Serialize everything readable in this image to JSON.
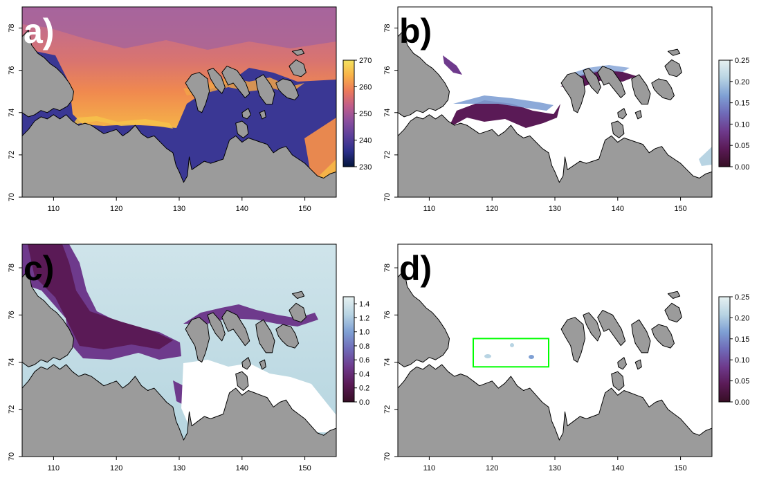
{
  "figure": {
    "panels": [
      {
        "label": "a)",
        "label_color": "#ffffff",
        "colorbar": {
          "ticks": [
            "230",
            "240",
            "250",
            "260",
            "270"
          ],
          "scheme": "thermal"
        }
      },
      {
        "label": "b)",
        "label_color": "#000000",
        "colorbar": {
          "ticks": [
            "0.00",
            "0.05",
            "0.10",
            "0.15",
            "0.20",
            "0.25"
          ],
          "scheme": "dense"
        }
      },
      {
        "label": "c)",
        "label_color": "#000000",
        "colorbar": {
          "ticks": [
            "0.0",
            "0.2",
            "0.4",
            "0.6",
            "0.8",
            "1.0",
            "1.2",
            "1.4"
          ],
          "scheme": "dense"
        }
      },
      {
        "label": "d)",
        "label_color": "#000000",
        "colorbar": {
          "ticks": [
            "0.00",
            "0.05",
            "0.10",
            "0.15",
            "0.20",
            "0.25"
          ],
          "scheme": "dense"
        }
      }
    ],
    "x_ticks": [
      "110",
      "120",
      "130",
      "140",
      "150"
    ],
    "y_ticks": [
      "70",
      "72",
      "74",
      "76",
      "78"
    ]
  },
  "chart_data": [
    {
      "type": "heatmap",
      "panel": "a)",
      "xlim": [
        105,
        155
      ],
      "ylim": [
        70,
        79
      ],
      "colorbar_range": [
        230,
        270
      ],
      "palette": "thermal (navy-purple-orange-yellow)"
    },
    {
      "type": "heatmap",
      "panel": "b)",
      "xlim": [
        105,
        155
      ],
      "ylim": [
        70,
        79
      ],
      "colorbar_range": [
        0.0,
        0.25
      ],
      "palette": "dense (dark purple to pale cyan)"
    },
    {
      "type": "heatmap",
      "panel": "c)",
      "xlim": [
        105,
        155
      ],
      "ylim": [
        70,
        79
      ],
      "colorbar_range": [
        0.0,
        1.5
      ],
      "palette": "dense (dark purple to pale cyan)"
    },
    {
      "type": "heatmap",
      "panel": "d)",
      "xlim": [
        105,
        155
      ],
      "ylim": [
        70,
        79
      ],
      "colorbar_range": [
        0.0,
        0.25
      ],
      "palette": "dense (dark purple to pale cyan)",
      "box_region": {
        "lon": [
          117,
          129
        ],
        "lat": [
          73.8,
          75
        ],
        "color": "#00ff00"
      }
    }
  ],
  "colors": {
    "land": "#9b9b9b",
    "thermal": [
      "#04163b",
      "#2b2f8a",
      "#5b3f9a",
      "#8a4f9e",
      "#c05d8a",
      "#ec7a5a",
      "#f9b248",
      "#f4e35e"
    ],
    "dense": [
      "#360e24",
      "#5a1a56",
      "#6e3a8c",
      "#6f6ab8",
      "#7fa0d4",
      "#b8d4e3",
      "#e6f1f1"
    ],
    "box": "#00ff00"
  }
}
